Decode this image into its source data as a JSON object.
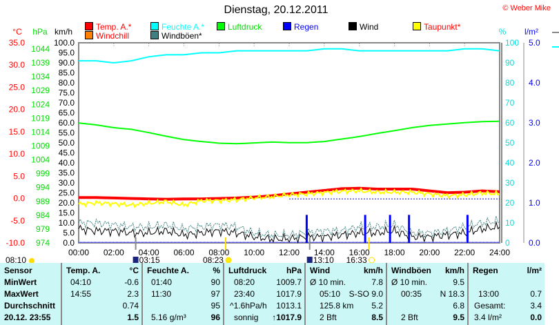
{
  "header": {
    "title": "Dienstag, 20.12.2011",
    "copyright": "© Weber Mike"
  },
  "legend": [
    {
      "label": "Temp. A.*",
      "color": "#ff0000",
      "text_color": "#ff0000"
    },
    {
      "label": "Feuchte A.*",
      "color": "#00ffff",
      "text_color": "#00ffff"
    },
    {
      "label": "Luftdruck",
      "color": "#00ff00",
      "text_color": "#00dd00"
    },
    {
      "label": "Regen",
      "color": "#0000ff",
      "text_color": "#0000ff"
    },
    {
      "label": "Wind",
      "color": "#000000",
      "text_color": "#000000"
    },
    {
      "label": "Taupunkt*",
      "color": "#ffff00",
      "text_color": "#ff0000"
    },
    {
      "label": "Windchill",
      "color": "#ff8000",
      "text_color": "#ff0000"
    },
    {
      "label": "Windböen*",
      "color": "#408080",
      "text_color": "#000000"
    }
  ],
  "chart_data": {
    "type": "line",
    "title": "Dienstag, 20.12.2011",
    "x_ticks": [
      "00:00",
      "02:00",
      "04:00",
      "06:00",
      "08:00",
      "10:00",
      "12:00",
      "14:00",
      "16:00",
      "18:00",
      "20:00",
      "22:00",
      "24:00"
    ],
    "axes": {
      "temp": {
        "unit": "°C",
        "range": [
          -10,
          35
        ],
        "ticks": [
          "35.0",
          "30.0",
          "25.0",
          "20.0",
          "15.0",
          "10.0",
          "5.0",
          "0.0",
          "-5.0",
          "-10.0"
        ]
      },
      "pressure": {
        "unit": "hPa",
        "range": [
          974,
          1044
        ],
        "ticks": [
          "1044",
          "1039",
          "1034",
          "1029",
          "1024",
          "1019",
          "1014",
          "1009",
          "1004",
          "999",
          "994",
          "989",
          "984",
          "979",
          "974"
        ]
      },
      "wind": {
        "unit": "km/h",
        "range": [
          0,
          100
        ],
        "ticks": [
          "100.0",
          "95.0",
          "90.0",
          "85.0",
          "80.0",
          "75.0",
          "70.0",
          "65.0",
          "60.0",
          "55.0",
          "50.0",
          "45.0",
          "40.0",
          "35.0",
          "30.0",
          "25.0",
          "20.0",
          "15.0",
          "10.0",
          "5.0",
          "0.0"
        ]
      },
      "humidity": {
        "unit": "%",
        "range": [
          0,
          100
        ],
        "ticks": [
          "100",
          "90",
          "80",
          "70",
          "60",
          "50",
          "40",
          "30",
          "20",
          "10",
          "0"
        ]
      },
      "rain": {
        "unit": "l/m²",
        "range": [
          0,
          5
        ],
        "ticks": [
          "5.0",
          "4.0",
          "3.0",
          "2.0",
          "1.0",
          "0.0"
        ]
      }
    },
    "hours": [
      0,
      1,
      2,
      3,
      4,
      5,
      6,
      7,
      8,
      9,
      10,
      11,
      12,
      13,
      14,
      15,
      16,
      17,
      18,
      19,
      20,
      21,
      22,
      23,
      24
    ],
    "series": [
      {
        "name": "Temp. A.",
        "axis": "temp",
        "values": [
          0.2,
          0.2,
          0.1,
          0,
          -0.1,
          -0.2,
          -0.1,
          -0.1,
          0,
          0.1,
          0.3,
          0.6,
          1.0,
          1.4,
          1.8,
          2.2,
          2.3,
          2.1,
          2.1,
          2.1,
          1.7,
          1.3,
          1.4,
          1.7,
          1.5
        ]
      },
      {
        "name": "Feuchte A.",
        "axis": "humidity",
        "values": [
          91,
          91,
          90,
          91,
          93,
          94,
          94,
          95,
          95,
          96,
          96,
          96,
          96,
          96,
          97,
          97,
          96,
          96,
          96,
          96,
          96,
          96,
          97,
          97,
          96
        ]
      },
      {
        "name": "Luftdruck",
        "axis": "pressure",
        "values": [
          1017.3,
          1016.6,
          1015.6,
          1015.0,
          1013.8,
          1012.5,
          1011.3,
          1010.6,
          1010.0,
          1009.8,
          1010.1,
          1010.4,
          1010.2,
          1010.2,
          1010.6,
          1011.5,
          1012.4,
          1013.5,
          1014.5,
          1015.6,
          1016.4,
          1016.9,
          1017.4,
          1017.8,
          1017.9
        ]
      },
      {
        "name": "Taupunkt",
        "axis": "temp",
        "values": [
          -1.3,
          -1.0,
          -1.2,
          -1.5,
          -1.1,
          -0.7,
          -1.5,
          -0.5,
          -0.5,
          -0.3,
          0.1,
          0.4,
          0.8,
          1.0,
          1.3,
          1.6,
          1.7,
          1.4,
          1.4,
          1.4,
          1.0,
          0.6,
          0.8,
          1.2,
          1.0
        ]
      },
      {
        "name": "Wind",
        "axis": "wind",
        "values": [
          7,
          6,
          6,
          5,
          5,
          6,
          4,
          5,
          6,
          5,
          3,
          2,
          2,
          3,
          3,
          4,
          5,
          5,
          6,
          3,
          3,
          4,
          5,
          7,
          8
        ]
      },
      {
        "name": "Windböen",
        "axis": "wind",
        "values": [
          10,
          10,
          9,
          8,
          8,
          9,
          7,
          8,
          9,
          8,
          5,
          4,
          4,
          5,
          6,
          6,
          8,
          8,
          9,
          5,
          5,
          6,
          8,
          10,
          11
        ]
      }
    ],
    "rain_events": [
      {
        "time": "13:00",
        "value": 0.7
      },
      {
        "time": "16:20",
        "value": 0.7
      },
      {
        "time": "17:45",
        "value": 0.7
      },
      {
        "time": "18:50",
        "value": 0.7
      },
      {
        "time": "22:10",
        "value": 0.7
      }
    ],
    "rain_reference_line": 1.1,
    "markers": [
      {
        "label": "08:10",
        "kind": "sun-icon"
      },
      {
        "label": "03:15",
        "kind": "moonrise-icon",
        "hour": 3.25
      },
      {
        "label": "08:23",
        "kind": "sunrise-icon",
        "hour": 8.38
      },
      {
        "label": "13:10",
        "kind": "moonset-icon",
        "hour": 13.17
      },
      {
        "label": "16:33",
        "kind": "sunset-icon",
        "hour": 16.55
      }
    ]
  },
  "table": {
    "columns": [
      {
        "title": "Sensor",
        "unit": "",
        "rows": [
          [
            "MinWert",
            ""
          ],
          [
            "MaxWert",
            ""
          ],
          [
            "Durchschnitt",
            ""
          ],
          [
            "20.12. 23:55",
            ""
          ]
        ]
      },
      {
        "title": "Temp. A.",
        "unit": "°C",
        "rows": [
          [
            "04:10",
            "-0.6"
          ],
          [
            "14:55",
            "2.3"
          ],
          [
            "",
            "0.74"
          ],
          [
            "",
            "1.5"
          ]
        ]
      },
      {
        "title": "Feuchte A.",
        "unit": "%",
        "rows": [
          [
            "01:40",
            "90"
          ],
          [
            "11:30",
            "97"
          ],
          [
            "",
            "95"
          ],
          [
            "5.16 g/m³",
            "96"
          ]
        ]
      },
      {
        "title": "Luftdruck",
        "unit": "hPa",
        "rows": [
          [
            "08:20",
            "1009.7"
          ],
          [
            "23:40",
            "1017.9"
          ],
          [
            "^1.6hPa/h",
            "1013.1"
          ],
          [
            "sonnig",
            "↑1017.9"
          ]
        ]
      },
      {
        "title": "Wind",
        "unit": "km/h",
        "rows": [
          [
            "Ø 10 min.",
            "7.8"
          ],
          [
            "05:10",
            "S-SO 9.0"
          ],
          [
            "125.8 km",
            "5.2"
          ],
          [
            "2 Bft",
            "8.5"
          ]
        ]
      },
      {
        "title": "Windböen",
        "unit": "km/h",
        "rows": [
          [
            "Ø 10 min.",
            "9.5"
          ],
          [
            "00:35",
            "N 18.3"
          ],
          [
            "",
            "6.8"
          ],
          [
            "2 Bft",
            "9.5"
          ]
        ]
      },
      {
        "title": "Regen",
        "unit": "l/m²",
        "rows": [
          [
            "",
            ""
          ],
          [
            "13:00",
            "0.7"
          ],
          [
            "Gesamt:",
            "3.4"
          ],
          [
            "3.4 l/m²",
            "0.0"
          ]
        ]
      }
    ]
  }
}
